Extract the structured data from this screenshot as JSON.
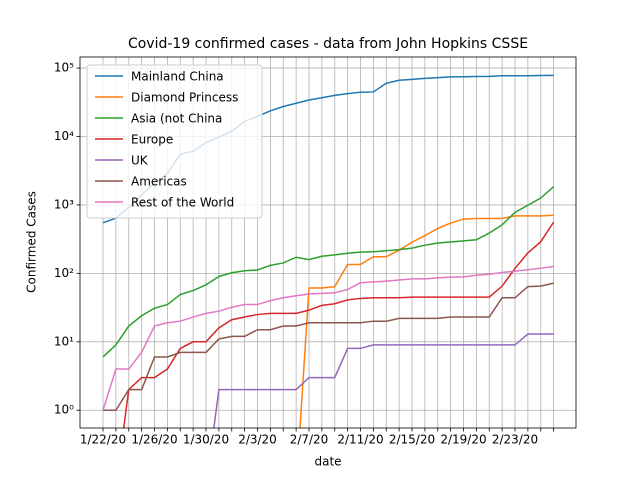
{
  "chart_data": {
    "type": "line",
    "title": "Covid-19 confirmed cases - data from John Hopkins CSSE",
    "x_label": "date",
    "y_label": "Confirmed Cases",
    "log_y": true,
    "grid": true,
    "legend": "upper left",
    "categories": [
      "1/22/20",
      null,
      null,
      null,
      "1/26/20",
      null,
      null,
      null,
      "1/30/20",
      null,
      null,
      null,
      "2/3/20",
      null,
      null,
      null,
      "2/7/20",
      null,
      null,
      null,
      "2/11/20",
      null,
      null,
      null,
      "2/15/20",
      null,
      null,
      null,
      "2/19/20",
      null,
      null,
      null,
      "2/23/20",
      null,
      null,
      null
    ],
    "ylim": [
      0.55,
      145000
    ],
    "yticks": [
      {
        "value": 1,
        "label": "10⁰"
      },
      {
        "value": 10,
        "label": "10¹"
      },
      {
        "value": 100,
        "label": "10²"
      },
      {
        "value": 1000,
        "label": "10³"
      },
      {
        "value": 10000,
        "label": "10⁴"
      },
      {
        "value": 100000,
        "label": "10⁵"
      }
    ],
    "series": [
      {
        "name": "Mainland China",
        "color": "#1f77b4",
        "values": [
          548,
          643,
          920,
          1406,
          2075,
          2877,
          5509,
          6087,
          8141,
          9802,
          11891,
          16630,
          19716,
          23707,
          27440,
          30587,
          34110,
          36814,
          39829,
          42354,
          44386,
          44759,
          59895,
          66358,
          68413,
          70513,
          72434,
          74211,
          74619,
          75077,
          75550,
          77001,
          77022,
          77241,
          77754,
          78166
        ]
      },
      {
        "name": "Diamond Princess",
        "color": "#ff7f0e",
        "values": [
          0,
          0,
          0,
          0,
          0,
          0,
          0,
          0,
          0,
          0,
          0,
          0,
          0,
          0,
          0,
          0,
          61,
          61,
          64,
          135,
          135,
          175,
          175,
          218,
          285,
          355,
          454,
          542,
          621,
          634,
          634,
          634,
          691,
          691,
          691,
          705
        ]
      },
      {
        "name": "Asia (not China",
        "color": "#2ca02c",
        "values": [
          6,
          9,
          17,
          24,
          31,
          35,
          49,
          56,
          68,
          90,
          102,
          109,
          112,
          131,
          142,
          172,
          159,
          178,
          186,
          197,
          204,
          207,
          214,
          222,
          234,
          258,
          278,
          287,
          298,
          310,
          388,
          512,
          779,
          990,
          1260,
          1850
        ]
      },
      {
        "name": "Europe",
        "color": "#d62728",
        "values": [
          0,
          0,
          2,
          3,
          3,
          4,
          8,
          10,
          10,
          16,
          21,
          23,
          25,
          26,
          26,
          26,
          29,
          34,
          36,
          41,
          43,
          44,
          44,
          44,
          45,
          45,
          45,
          45,
          45,
          45,
          45,
          65,
          118,
          199,
          290,
          560
        ]
      },
      {
        "name": "UK",
        "color": "#9467bd",
        "values": [
          0,
          0,
          0,
          0,
          0,
          0,
          0,
          0,
          0,
          2,
          2,
          2,
          2,
          2,
          2,
          2,
          3,
          3,
          3,
          8,
          8,
          9,
          9,
          9,
          9,
          9,
          9,
          9,
          9,
          9,
          9,
          9,
          9,
          13,
          13,
          13
        ]
      },
      {
        "name": "Americas",
        "color": "#8c564b",
        "values": [
          1,
          1,
          2,
          2,
          6,
          6,
          7,
          7,
          7,
          11,
          12,
          12,
          15,
          15,
          17,
          17,
          19,
          19,
          19,
          19,
          19,
          20,
          20,
          22,
          22,
          22,
          22,
          23,
          23,
          23,
          23,
          44,
          44,
          64,
          65,
          72
        ]
      },
      {
        "name": "Rest of the World",
        "color": "#e377c2",
        "values": [
          1,
          4,
          4,
          7,
          17,
          19,
          20,
          23,
          26,
          28,
          32,
          35,
          35,
          40,
          44,
          47,
          50,
          51,
          52,
          58,
          73,
          75,
          77,
          80,
          83,
          83,
          86,
          88,
          89,
          94,
          97,
          103,
          108,
          113,
          119,
          126
        ]
      }
    ]
  }
}
